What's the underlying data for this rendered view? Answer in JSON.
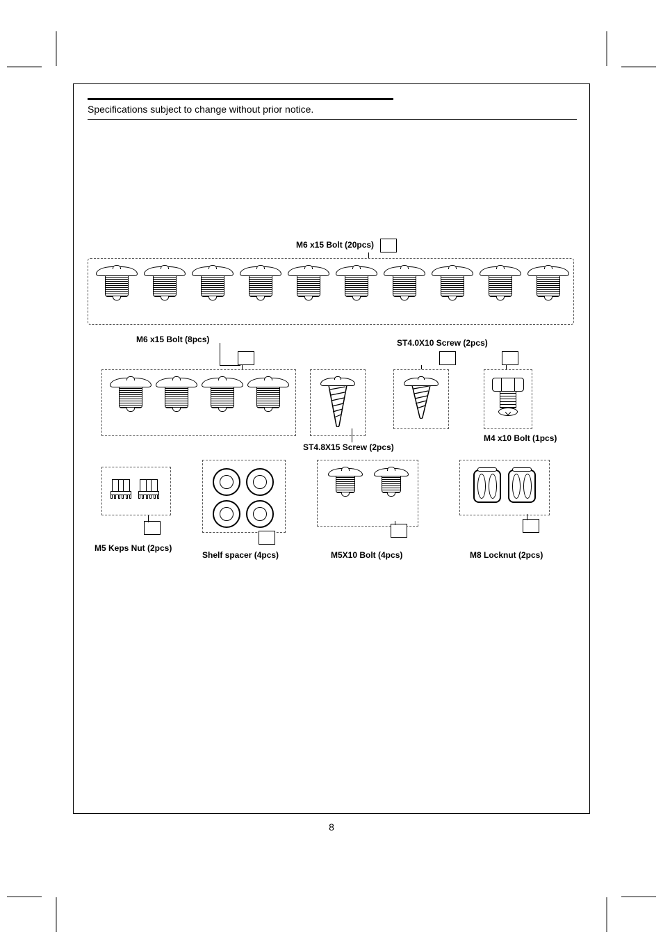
{
  "notice": "Specifications subject to change without prior notice.",
  "page_number": "8",
  "parts": {
    "m6x15_20": {
      "label": "M6 x15 Bolt (20pcs)",
      "count": 10,
      "threads": 10
    },
    "m6x15_8": {
      "label": "M6 x15 Bolt (8pcs)",
      "count": 4,
      "threads": 10
    },
    "st40x10": {
      "label": "ST4.0X10 Screw (2pcs)"
    },
    "st48x15": {
      "label": "ST4.8X15 Screw (2pcs)"
    },
    "m4x10": {
      "label": "M4 x10 Bolt (1pcs)"
    },
    "m5keps": {
      "label": "M5 Keps Nut (2pcs)"
    },
    "spacer": {
      "label": "Shelf spacer (4pcs)"
    },
    "m5x10": {
      "label": "M5X10 Bolt (4pcs)"
    },
    "m8lock": {
      "label": "M8 Locknut (2pcs)"
    }
  },
  "styles": {
    "dash_color": "#555555",
    "line_color": "#000000",
    "background": "#ffffff",
    "font_family": "Arial",
    "label_fontsize_pt": 9,
    "notice_fontsize_pt": 11
  }
}
